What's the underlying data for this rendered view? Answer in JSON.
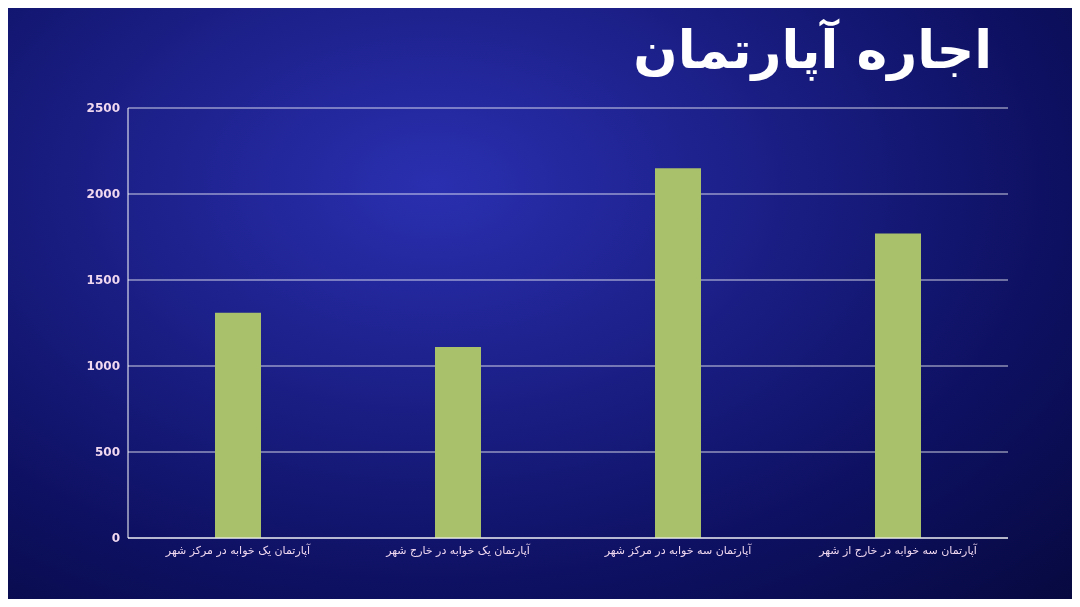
{
  "chart_data": {
    "type": "bar",
    "title": "اجاره آپارتمان",
    "categories": [
      "آپارتمان یک خوابه در مرکز شهر",
      "آپارتمان یک خوابه در خارج شهر",
      "آپارتمان سه خوابه در مرکز شهر",
      "آپارتمان سه خوابه در  خارج از شهر"
    ],
    "values": [
      1310,
      1110,
      2150,
      1770
    ],
    "color": "#a9c16a",
    "ylim": [
      0,
      2500
    ],
    "yticks": [
      0,
      500,
      1000,
      1500,
      2000,
      2500
    ],
    "grid": "y"
  }
}
